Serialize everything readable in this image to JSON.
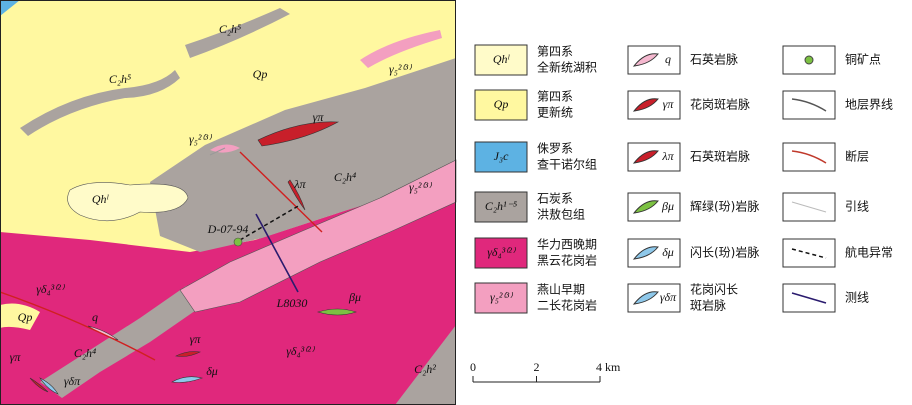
{
  "map": {
    "labels": [
      "C₂h⁵",
      "Qp",
      "C₂h⁵",
      "γ₅²⁽³⁾",
      "γπ",
      "γ₅²⁽³⁾",
      "λπ",
      "C₂h⁴",
      "γ₅²⁽³⁾",
      "Qhˡ",
      "D-07-94",
      "L8030",
      "βμ",
      "γδ₄³⁽²⁾",
      "Qp",
      "q",
      "γπ",
      "γδ₄³⁽²⁾",
      "C₂h⁴",
      "δμ",
      "γπ",
      "γδπ",
      "C₂h²"
    ]
  },
  "legend": {
    "units": [
      {
        "symbol": "Qhˡ",
        "lines": [
          "第四系",
          "全新统湖积"
        ]
      },
      {
        "symbol": "Qp",
        "lines": [
          "第四系",
          "更新统"
        ]
      },
      {
        "symbol": "J₃c",
        "lines": [
          "侏罗系",
          "查干诺尔组"
        ]
      },
      {
        "symbol": "C₂h¹⁻⁵",
        "lines": [
          "石炭系",
          "洪敖包组"
        ]
      },
      {
        "symbol": "γδ₄³⁽²⁾",
        "lines": [
          "华力西晚期",
          "黑云花岗岩"
        ]
      },
      {
        "symbol": "γ₅²⁽³⁾",
        "lines": [
          "燕山早期",
          "二长花岗岩"
        ]
      }
    ],
    "veins": [
      {
        "symbol": "q",
        "lines": [
          "石英岩脉"
        ]
      },
      {
        "symbol": "γπ",
        "lines": [
          "花岗斑岩脉"
        ]
      },
      {
        "symbol": "λπ",
        "lines": [
          "石英斑岩脉"
        ]
      },
      {
        "symbol": "βμ",
        "lines": [
          "辉绿(玢)岩脉"
        ]
      },
      {
        "symbol": "δμ",
        "lines": [
          "闪长(玢)岩脉"
        ]
      },
      {
        "symbol": "γδπ",
        "lines": [
          "花岗闪长",
          "斑岩脉"
        ]
      }
    ],
    "symbols": [
      "铜矿点",
      "地层界线",
      "断层",
      "引线",
      "航电异常",
      "测线"
    ]
  },
  "scale": {
    "ticks": [
      0,
      2,
      {
        "value": 4,
        "label": "4 km"
      }
    ]
  }
}
